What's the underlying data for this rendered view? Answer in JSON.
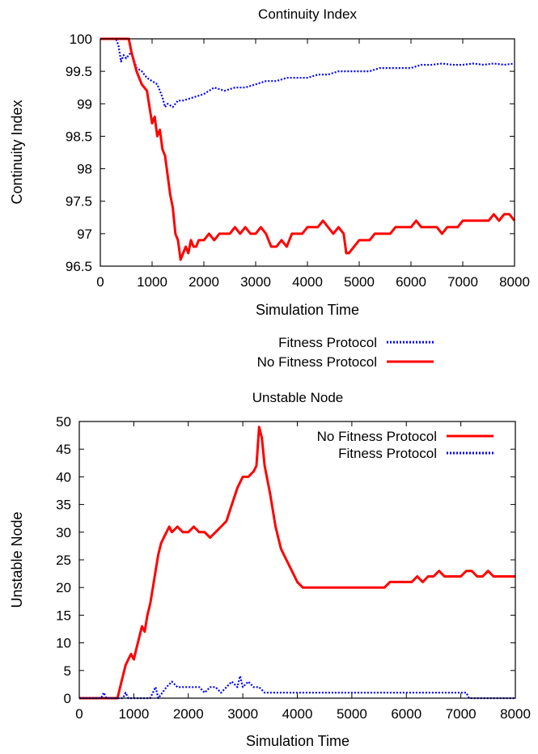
{
  "chart_data": [
    {
      "type": "line",
      "title": "Continuity Index",
      "xlabel": "Simulation Time",
      "ylabel": "Continuity Index",
      "xlim": [
        0,
        8000
      ],
      "ylim": [
        96.5,
        100
      ],
      "xticks": [
        "0",
        "1000",
        "2000",
        "3000",
        "4000",
        "5000",
        "6000",
        "7000",
        "8000"
      ],
      "yticks": [
        "96.5",
        "97",
        "97.5",
        "98",
        "98.5",
        "99",
        "99.5",
        "100"
      ],
      "legend_position": "below",
      "series": [
        {
          "name": "Fitness Protocol",
          "color": "#0000ff",
          "style": "dotted",
          "x": [
            0,
            300,
            350,
            400,
            450,
            500,
            600,
            700,
            800,
            900,
            1000,
            1100,
            1200,
            1250,
            1300,
            1400,
            1500,
            1600,
            1800,
            2000,
            2200,
            2400,
            2600,
            2800,
            3000,
            3200,
            3400,
            3600,
            3800,
            4000,
            4200,
            4400,
            4600,
            4800,
            5000,
            5200,
            5400,
            5600,
            5800,
            6000,
            6200,
            6400,
            6600,
            6800,
            7000,
            7200,
            7400,
            7600,
            7800,
            8000
          ],
          "y": [
            100,
            100,
            99.9,
            99.65,
            99.75,
            99.7,
            99.8,
            99.55,
            99.5,
            99.4,
            99.35,
            99.3,
            99.1,
            98.95,
            99.0,
            98.95,
            99.05,
            99.05,
            99.1,
            99.15,
            99.25,
            99.2,
            99.25,
            99.25,
            99.3,
            99.35,
            99.35,
            99.4,
            99.4,
            99.4,
            99.45,
            99.45,
            99.5,
            99.5,
            99.5,
            99.5,
            99.55,
            99.55,
            99.55,
            99.55,
            99.6,
            99.6,
            99.62,
            99.6,
            99.6,
            99.62,
            99.6,
            99.62,
            99.6,
            99.62
          ]
        },
        {
          "name": "No Fitness Protocol",
          "color": "#ff0000",
          "style": "solid",
          "x": [
            0,
            550,
            600,
            700,
            800,
            900,
            900,
            1000,
            1050,
            1100,
            1150,
            1200,
            1250,
            1300,
            1350,
            1400,
            1450,
            1500,
            1550,
            1600,
            1650,
            1700,
            1750,
            1800,
            1850,
            1900,
            1950,
            2000,
            2100,
            2200,
            2300,
            2400,
            2500,
            2600,
            2700,
            2800,
            2900,
            3000,
            3100,
            3200,
            3300,
            3400,
            3500,
            3600,
            3700,
            3800,
            3900,
            4000,
            4100,
            4200,
            4300,
            4400,
            4500,
            4600,
            4700,
            4750,
            4800,
            4900,
            5000,
            5100,
            5200,
            5300,
            5400,
            5500,
            5600,
            5700,
            5800,
            5900,
            6000,
            6100,
            6200,
            6300,
            6400,
            6500,
            6600,
            6700,
            6800,
            6900,
            7000,
            7100,
            7200,
            7300,
            7400,
            7500,
            7600,
            7700,
            7800,
            7900,
            8000
          ],
          "y": [
            100,
            100,
            99.8,
            99.5,
            99.3,
            99.2,
            99.2,
            98.7,
            98.8,
            98.5,
            98.6,
            98.3,
            98.2,
            97.9,
            97.6,
            97.4,
            97.0,
            96.9,
            96.6,
            96.7,
            96.8,
            96.7,
            96.9,
            96.8,
            96.8,
            96.9,
            96.9,
            96.9,
            97.0,
            96.9,
            97.0,
            97.0,
            97.0,
            97.1,
            97.0,
            97.1,
            97.0,
            97.0,
            97.1,
            97.0,
            96.8,
            96.8,
            96.9,
            96.8,
            97.0,
            97.0,
            97.0,
            97.1,
            97.1,
            97.1,
            97.2,
            97.1,
            97.0,
            97.1,
            97.0,
            96.7,
            96.7,
            96.8,
            96.9,
            96.9,
            96.9,
            97.0,
            97.0,
            97.0,
            97.0,
            97.1,
            97.1,
            97.1,
            97.1,
            97.2,
            97.1,
            97.1,
            97.1,
            97.1,
            97.0,
            97.1,
            97.1,
            97.1,
            97.2,
            97.2,
            97.2,
            97.2,
            97.2,
            97.2,
            97.3,
            97.2,
            97.3,
            97.3,
            97.2
          ]
        }
      ]
    },
    {
      "type": "line",
      "title": "Unstable Node",
      "xlabel": "Simulation Time",
      "ylabel": "Unstable Node",
      "xlim": [
        0,
        8000
      ],
      "ylim": [
        0,
        50
      ],
      "xticks": [
        "0",
        "1000",
        "2000",
        "3000",
        "4000",
        "5000",
        "6000",
        "7000",
        "8000"
      ],
      "yticks": [
        "0",
        "5",
        "10",
        "15",
        "20",
        "25",
        "30",
        "35",
        "40",
        "45",
        "50"
      ],
      "legend_position": "top-right",
      "series": [
        {
          "name": "No Fitness Protocol",
          "color": "#ff0000",
          "style": "solid",
          "x": [
            0,
            700,
            750,
            800,
            850,
            900,
            950,
            1000,
            1050,
            1100,
            1150,
            1200,
            1250,
            1300,
            1350,
            1400,
            1450,
            1500,
            1550,
            1600,
            1650,
            1700,
            1800,
            1900,
            2000,
            2100,
            2200,
            2300,
            2400,
            2500,
            2600,
            2700,
            2800,
            2900,
            3000,
            3100,
            3200,
            3250,
            3300,
            3350,
            3400,
            3500,
            3600,
            3700,
            3800,
            3900,
            4000,
            4100,
            4200,
            5000,
            5600,
            5700,
            5800,
            5900,
            6000,
            6100,
            6200,
            6300,
            6400,
            6500,
            6600,
            6700,
            6800,
            6900,
            7000,
            7100,
            7200,
            7300,
            7400,
            7500,
            7600,
            7700,
            7800,
            8000
          ],
          "y": [
            0,
            0,
            2,
            4,
            6,
            7,
            8,
            7,
            9,
            11,
            13,
            12,
            15,
            17,
            20,
            23,
            26,
            28,
            29,
            30,
            31,
            30,
            31,
            30,
            30,
            31,
            30,
            30,
            29,
            30,
            31,
            32,
            35,
            38,
            40,
            40,
            41,
            42,
            49,
            47,
            42,
            37,
            31,
            27,
            25,
            23,
            21,
            20,
            20,
            20,
            20,
            21,
            21,
            21,
            21,
            21,
            22,
            21,
            22,
            22,
            23,
            22,
            22,
            22,
            22,
            23,
            23,
            22,
            22,
            23,
            22,
            22,
            22,
            22
          ]
        },
        {
          "name": "Fitness Protocol",
          "color": "#0000ff",
          "style": "dotted",
          "x": [
            0,
            400,
            450,
            500,
            800,
            850,
            900,
            1300,
            1350,
            1400,
            1450,
            1600,
            1700,
            1800,
            1900,
            2000,
            2200,
            2300,
            2400,
            2500,
            2600,
            2700,
            2800,
            2900,
            2950,
            3000,
            3100,
            3200,
            3300,
            3400,
            3500,
            4000,
            5000,
            6000,
            7000,
            7100,
            7150,
            7200,
            8000
          ],
          "y": [
            0,
            0,
            1,
            0,
            0,
            1,
            0,
            0,
            1,
            2,
            0,
            2,
            3,
            2,
            2,
            2,
            2,
            1,
            2,
            2,
            1,
            2,
            3,
            2,
            4,
            2,
            3,
            2,
            2,
            1,
            1,
            1,
            1,
            1,
            1,
            1,
            0,
            0,
            0
          ]
        }
      ]
    }
  ]
}
